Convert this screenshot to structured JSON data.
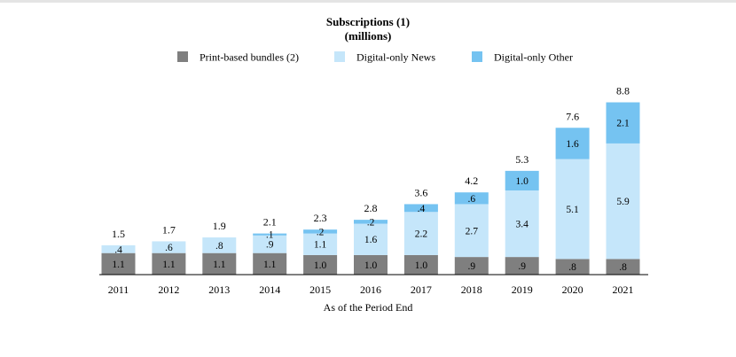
{
  "chart_data": {
    "type": "bar",
    "stacked": true,
    "title": "Subscriptions (1)",
    "subtitle": "(millions)",
    "xlabel": "As of the Period End",
    "ylabel": "",
    "ylim": [
      0,
      9.6
    ],
    "grid": false,
    "legend_position": "top",
    "categories": [
      "2011",
      "2012",
      "2013",
      "2014",
      "2015",
      "2016",
      "2017",
      "2018",
      "2019",
      "2020",
      "2021"
    ],
    "series": [
      {
        "name": "Print-based bundles (2)",
        "color": "#7f7f7f",
        "values": [
          1.1,
          1.1,
          1.1,
          1.1,
          1.0,
          1.0,
          1.0,
          0.9,
          0.9,
          0.8,
          0.8
        ],
        "labels": [
          "1.1",
          "1.1",
          "1.1",
          "1.1",
          "1.0",
          "1.0",
          "1.0",
          ".9",
          ".9",
          ".8",
          ".8"
        ]
      },
      {
        "name": "Digital-only News",
        "color": "#c5e6fa",
        "values": [
          0.4,
          0.6,
          0.8,
          0.9,
          1.1,
          1.6,
          2.2,
          2.7,
          3.4,
          5.1,
          5.9
        ],
        "labels": [
          ".4",
          ".6",
          ".8",
          ".9",
          "1.1",
          "1.6",
          "2.2",
          "2.7",
          "3.4",
          "5.1",
          "5.9"
        ]
      },
      {
        "name": "Digital-only Other",
        "color": "#75c3f1",
        "values": [
          0,
          0,
          0,
          0.1,
          0.2,
          0.2,
          0.4,
          0.6,
          1.0,
          1.6,
          2.1
        ],
        "labels": [
          "",
          "",
          "",
          ".1",
          ".2",
          ".2",
          ".4",
          ".6",
          "1.0",
          "1.6",
          "2.1"
        ]
      }
    ],
    "totals": [
      "1.5",
      "1.7",
      "1.9",
      "2.1",
      "2.3",
      "2.8",
      "3.6",
      "4.2",
      "5.3",
      "7.6",
      "8.8"
    ]
  }
}
